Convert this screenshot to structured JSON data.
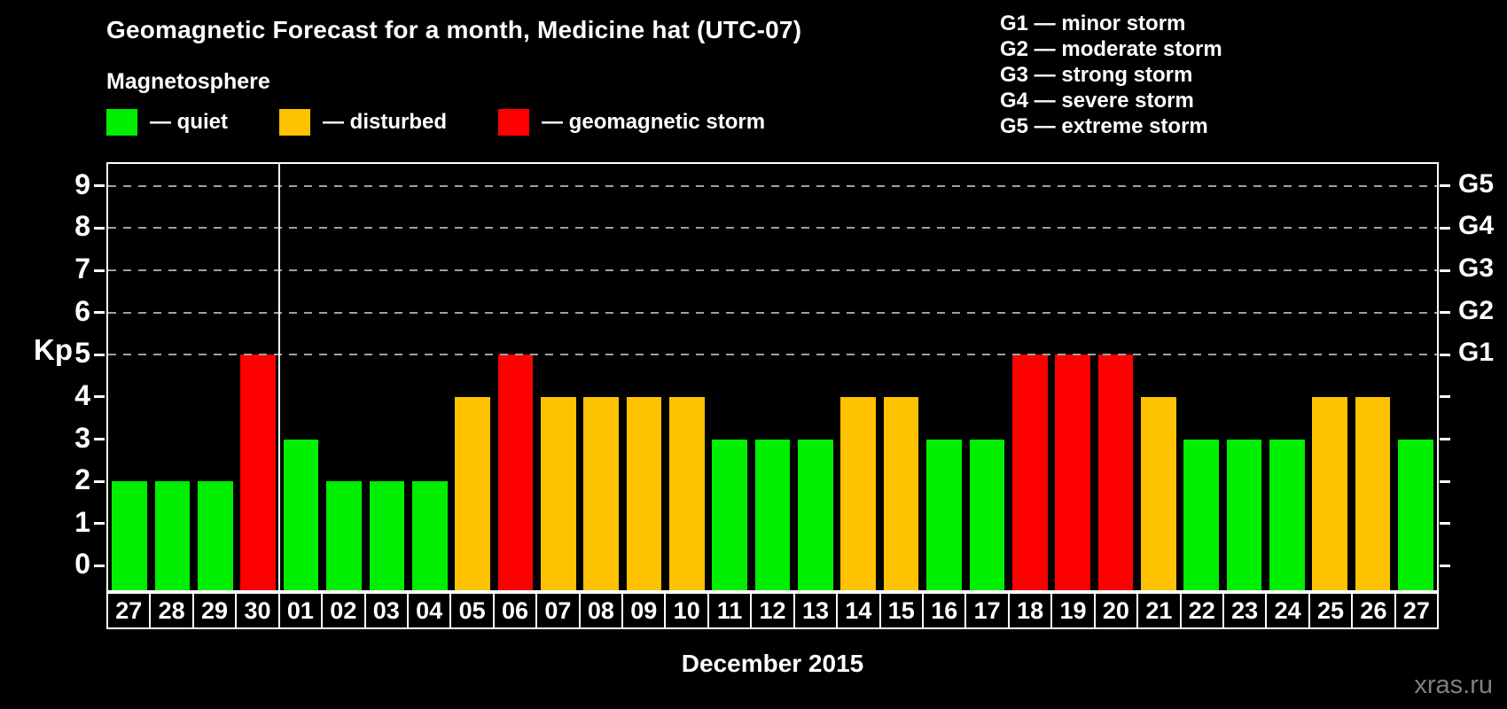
{
  "header": {
    "title": "Geomagnetic Forecast for a month, Medicine hat (UTC-07)"
  },
  "legend": {
    "title": "Magnetosphere",
    "items": [
      {
        "key": "quiet",
        "label": "— quiet"
      },
      {
        "key": "disturbed",
        "label": "— disturbed"
      },
      {
        "key": "storm",
        "label": "— geomagnetic storm"
      }
    ]
  },
  "g_legend": [
    "G1 — minor storm",
    "G2 — moderate storm",
    "G3 — strong storm",
    "G4 — severe storm",
    "G5 — extreme storm"
  ],
  "colors": {
    "quiet": "#00ee00",
    "disturbed": "#ffc200",
    "storm": "#ff0000",
    "gridline": "#a0a0a0",
    "axis": "#ffffff",
    "watermark": "#7f7f7f"
  },
  "axis": {
    "kp_label": "Kp",
    "y_ticks": [
      0,
      1,
      2,
      3,
      4,
      5,
      6,
      7,
      8,
      9
    ],
    "right_labels": [
      {
        "value": 5,
        "label": "G1"
      },
      {
        "value": 6,
        "label": "G2"
      },
      {
        "value": 7,
        "label": "G3"
      },
      {
        "value": 8,
        "label": "G4"
      },
      {
        "value": 9,
        "label": "G5"
      }
    ]
  },
  "chart_data": {
    "type": "bar",
    "title": "Geomagnetic Forecast for a month, Medicine hat (UTC-07)",
    "xlabel": "December 2015",
    "ylabel": "Kp",
    "ylim": [
      -0.58,
      9.52
    ],
    "grid_values": [
      5,
      6,
      7,
      8,
      9
    ],
    "grid_style": "dashed",
    "legend_position": "top",
    "month_break_index": 4,
    "points": [
      {
        "day": "27",
        "kp": 2,
        "status": "quiet"
      },
      {
        "day": "28",
        "kp": 2,
        "status": "quiet"
      },
      {
        "day": "29",
        "kp": 2,
        "status": "quiet"
      },
      {
        "day": "30",
        "kp": 5,
        "status": "storm"
      },
      {
        "day": "01",
        "kp": 3,
        "status": "quiet"
      },
      {
        "day": "02",
        "kp": 2,
        "status": "quiet"
      },
      {
        "day": "03",
        "kp": 2,
        "status": "quiet"
      },
      {
        "day": "04",
        "kp": 2,
        "status": "quiet"
      },
      {
        "day": "05",
        "kp": 4,
        "status": "disturbed"
      },
      {
        "day": "06",
        "kp": 5,
        "status": "storm"
      },
      {
        "day": "07",
        "kp": 4,
        "status": "disturbed"
      },
      {
        "day": "08",
        "kp": 4,
        "status": "disturbed"
      },
      {
        "day": "09",
        "kp": 4,
        "status": "disturbed"
      },
      {
        "day": "10",
        "kp": 4,
        "status": "disturbed"
      },
      {
        "day": "11",
        "kp": 3,
        "status": "quiet"
      },
      {
        "day": "12",
        "kp": 3,
        "status": "quiet"
      },
      {
        "day": "13",
        "kp": 3,
        "status": "quiet"
      },
      {
        "day": "14",
        "kp": 4,
        "status": "disturbed"
      },
      {
        "day": "15",
        "kp": 4,
        "status": "disturbed"
      },
      {
        "day": "16",
        "kp": 3,
        "status": "quiet"
      },
      {
        "day": "17",
        "kp": 3,
        "status": "quiet"
      },
      {
        "day": "18",
        "kp": 5,
        "status": "storm"
      },
      {
        "day": "19",
        "kp": 5,
        "status": "storm"
      },
      {
        "day": "20",
        "kp": 5,
        "status": "storm"
      },
      {
        "day": "21",
        "kp": 4,
        "status": "disturbed"
      },
      {
        "day": "22",
        "kp": 3,
        "status": "quiet"
      },
      {
        "day": "23",
        "kp": 3,
        "status": "quiet"
      },
      {
        "day": "24",
        "kp": 3,
        "status": "quiet"
      },
      {
        "day": "25",
        "kp": 4,
        "status": "disturbed"
      },
      {
        "day": "26",
        "kp": 4,
        "status": "disturbed"
      },
      {
        "day": "27",
        "kp": 3,
        "status": "quiet"
      }
    ]
  },
  "footer": {
    "month_label": "December 2015",
    "watermark": "xras.ru"
  }
}
